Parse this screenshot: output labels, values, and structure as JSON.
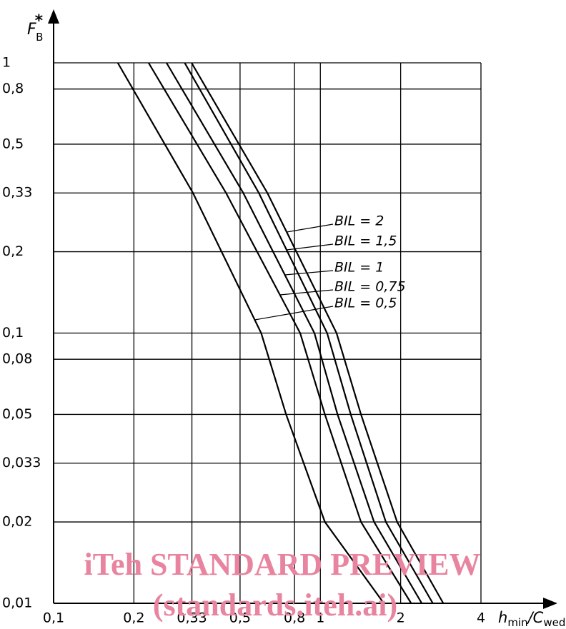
{
  "chart_data": {
    "type": "line",
    "y_label": {
      "main": "F",
      "sup": "*",
      "sub": "B"
    },
    "x_label": {
      "main": "h",
      "sub": "min",
      "mid": "/C",
      "sub2": "wed"
    },
    "log_x": true,
    "log_y": true,
    "grid": true,
    "color": "#000000",
    "xlim": [
      0.1,
      4
    ],
    "ylim": [
      0.01,
      1
    ],
    "xticks": [
      {
        "value": 0.1,
        "label": "0,1"
      },
      {
        "value": 0.2,
        "label": "0,2"
      },
      {
        "value": 0.33,
        "label": "0,33"
      },
      {
        "value": 0.5,
        "label": "0,5"
      },
      {
        "value": 0.8,
        "label": "0,8"
      },
      1,
      2,
      4
    ],
    "yticks": [
      1,
      {
        "value": 0.8,
        "label": "0,8"
      },
      {
        "value": 0.5,
        "label": "0,5"
      },
      {
        "value": 0.33,
        "label": "0,33"
      },
      {
        "value": 0.2,
        "label": "0,2"
      },
      {
        "value": 0.1,
        "label": "0,1"
      },
      {
        "value": 0.08,
        "label": "0,08"
      },
      {
        "value": 0.05,
        "label": "0,05"
      },
      {
        "value": 0.033,
        "label": "0,033"
      },
      {
        "value": 0.02,
        "label": "0,02"
      },
      {
        "value": 0.01,
        "label": "0,01"
      }
    ],
    "series": [
      {
        "name": "BIL = 0,5",
        "x": [
          0.174,
          0.333,
          0.6,
          0.744,
          1.04,
          1.73
        ],
        "values": [
          1,
          0.33,
          0.1,
          0.05,
          0.02,
          0.01
        ]
      },
      {
        "name": "BIL = 0,75",
        "x": [
          0.227,
          0.443,
          0.84,
          1.04,
          1.42,
          2.19
        ],
        "values": [
          1,
          0.33,
          0.1,
          0.05,
          0.02,
          0.01
        ]
      },
      {
        "name": "BIL = 1",
        "x": [
          0.265,
          0.514,
          0.95,
          1.16,
          1.59,
          2.4
        ],
        "values": [
          1,
          0.33,
          0.1,
          0.05,
          0.02,
          0.01
        ]
      },
      {
        "name": "BIL = 1,5",
        "x": [
          0.31,
          0.588,
          1.06,
          1.3,
          1.76,
          2.64
        ],
        "values": [
          1,
          0.33,
          0.1,
          0.05,
          0.02,
          0.01
        ]
      },
      {
        "name": "BIL = 2",
        "x": [
          0.329,
          0.633,
          1.15,
          1.42,
          1.94,
          2.89
        ],
        "values": [
          1,
          0.33,
          0.1,
          0.05,
          0.02,
          0.01
        ]
      }
    ],
    "watermark": [
      "iTeh STANDARD PREVIEW",
      "(standards.iteh.ai)"
    ]
  }
}
